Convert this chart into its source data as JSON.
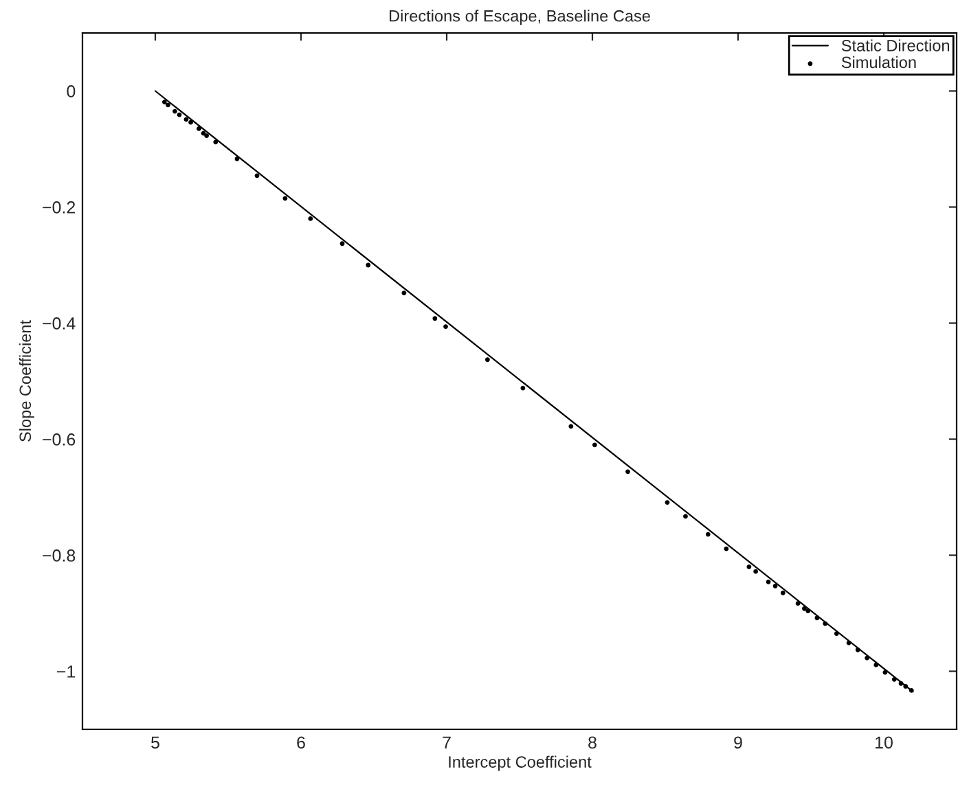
{
  "chart_data": {
    "type": "scatter",
    "title": "Directions of Escape, Baseline Case",
    "xlabel": "Intercept Coefficient",
    "ylabel": "Slope Coefficient",
    "xlim": [
      4.5,
      10.5
    ],
    "xticks": [
      5,
      6,
      7,
      8,
      9,
      10
    ],
    "ylim": [
      -1.1,
      0.1
    ],
    "yticks": [
      {
        "value": -1,
        "label": "−1"
      },
      {
        "value": -0.8,
        "label": "−0.8"
      },
      {
        "value": -0.6,
        "label": "−0.6"
      },
      {
        "value": -0.4,
        "label": "−0.4"
      },
      {
        "value": -0.2,
        "label": "−0.2"
      },
      0
    ],
    "grid": false,
    "legend": "top right",
    "series": [
      {
        "name": "Static Direction",
        "type": "line",
        "color": "#000000",
        "line_style": "solid",
        "marker": "none",
        "x": [
          5.0,
          10.2
        ],
        "values": [
          0,
          -1.035
        ]
      },
      {
        "name": "Simulation",
        "color": "#000000",
        "marker": "circle",
        "x": [
          5.063,
          5.087,
          5.134,
          5.165,
          5.212,
          5.243,
          5.299,
          5.33,
          5.352,
          5.414,
          5.561,
          5.698,
          5.891,
          6.065,
          6.283,
          6.461,
          6.707,
          6.919,
          6.993,
          7.28,
          7.523,
          7.853,
          8.016,
          8.243,
          8.514,
          8.639,
          8.794,
          8.919,
          9.075,
          9.121,
          9.208,
          9.255,
          9.308,
          9.411,
          9.455,
          9.48,
          9.542,
          9.598,
          9.676,
          9.76,
          9.822,
          9.885,
          9.947,
          10.009,
          10.072,
          10.118,
          10.15,
          10.19
        ],
        "values": [
          -0.019,
          -0.024,
          -0.035,
          -0.041,
          -0.049,
          -0.054,
          -0.065,
          -0.073,
          -0.077,
          -0.088,
          -0.117,
          -0.146,
          -0.185,
          -0.22,
          -0.263,
          -0.3,
          -0.348,
          -0.392,
          -0.406,
          -0.463,
          -0.512,
          -0.578,
          -0.61,
          -0.656,
          -0.709,
          -0.733,
          -0.764,
          -0.789,
          -0.82,
          -0.828,
          -0.846,
          -0.853,
          -0.865,
          -0.883,
          -0.892,
          -0.896,
          -0.908,
          -0.918,
          -0.935,
          -0.951,
          -0.963,
          -0.977,
          -0.989,
          -1.002,
          -1.014,
          -1.021,
          -1.026,
          -1.033
        ]
      }
    ]
  }
}
